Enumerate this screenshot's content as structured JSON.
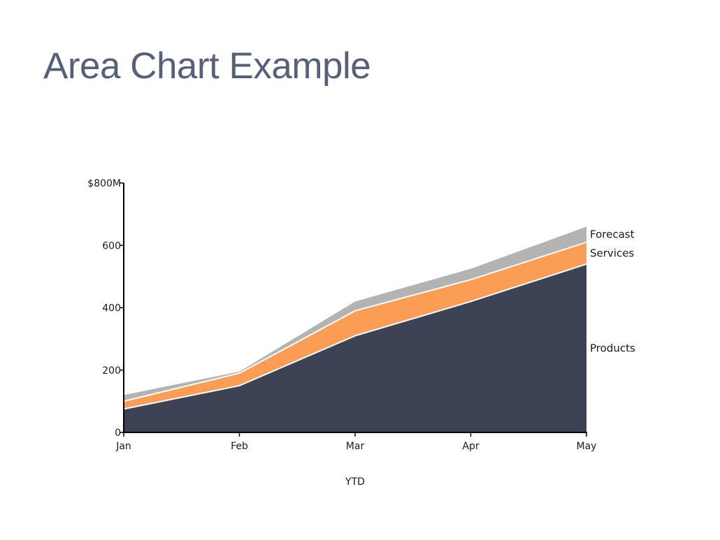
{
  "page": {
    "title": "Area Chart Example"
  },
  "chart_data": {
    "type": "area",
    "stacked": true,
    "categories": [
      "Jan",
      "Feb",
      "Mar",
      "Apr",
      "May"
    ],
    "series": [
      {
        "name": "Products",
        "values": [
          75,
          150,
          310,
          420,
          540
        ],
        "color": "#3d4354"
      },
      {
        "name": "Services",
        "values": [
          25,
          40,
          80,
          70,
          70
        ],
        "color": "#fc9d55"
      },
      {
        "name": "Forecast",
        "values": [
          20,
          5,
          30,
          35,
          50
        ],
        "color": "#b3b3b3"
      }
    ],
    "xlabel": "YTD",
    "ylabel": "",
    "ylim": [
      0,
      800
    ],
    "yticks": [
      0,
      200,
      400,
      600,
      800
    ],
    "ytick_labels": [
      "0",
      "200",
      "400",
      "600",
      "$800M"
    ],
    "grid": false,
    "legend": "inline-right"
  }
}
